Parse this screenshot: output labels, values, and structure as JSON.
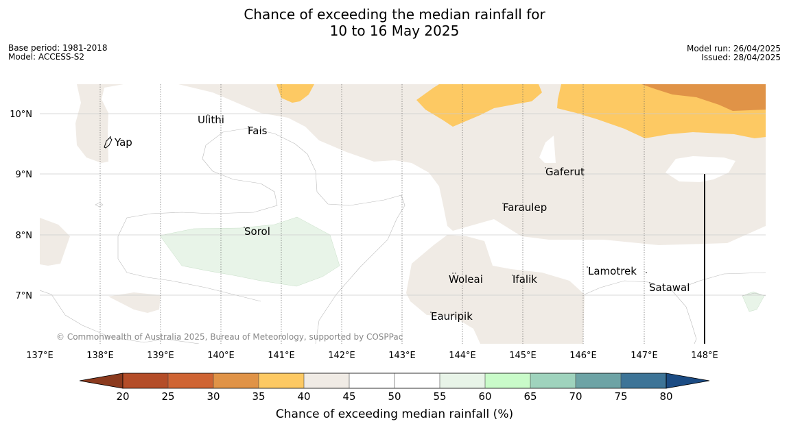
{
  "title": {
    "line1": "Chance of exceeding the median rainfall for",
    "line2": "10 to 16 May 2025"
  },
  "meta_left": {
    "base_period": "Base period: 1981-2018",
    "model": "Model: ACCESS-S2"
  },
  "meta_right": {
    "model_run": "Model run: 26/04/2025",
    "issued": "Issued: 28/04/2025"
  },
  "copyright": "© Commonwealth of Australia 2025, Bureau of Meteorology, supported by COSPPac",
  "map": {
    "lon_ticks": [
      "137°E",
      "138°E",
      "139°E",
      "140°E",
      "141°E",
      "142°E",
      "143°E",
      "144°E",
      "145°E",
      "146°E",
      "147°E",
      "148°E"
    ],
    "lat_ticks": [
      "10°N",
      "9°N",
      "8°N",
      "7°N"
    ],
    "places": [
      {
        "name": "Yap"
      },
      {
        "name": "Ulithi"
      },
      {
        "name": "Fais"
      },
      {
        "name": "Gaferut"
      },
      {
        "name": "Faraulep"
      },
      {
        "name": "Sorol"
      },
      {
        "name": "Lamotrek"
      },
      {
        "name": "Woleai"
      },
      {
        "name": "Ifalik"
      },
      {
        "name": "Satawal"
      },
      {
        "name": "Eauripik"
      }
    ]
  },
  "colorbar": {
    "label": "Chance of exceeding median rainfall (%)",
    "ticks": [
      "20",
      "25",
      "30",
      "35",
      "40",
      "45",
      "50",
      "55",
      "60",
      "65",
      "70",
      "75",
      "80"
    ],
    "colors": {
      "below_20": "#8b3a1e",
      "20_25": "#b44d28",
      "25_30": "#cf6433",
      "30_35": "#e09347",
      "35_40": "#fdc963",
      "40_45": "#f0ebe5",
      "45_50": "#ffffff",
      "50_55": "#ffffff",
      "55_60": "#e8f4e8",
      "60_65": "#c9fbc9",
      "65_70": "#9fd3bd",
      "70_75": "#6da3a5",
      "75_80": "#3d7497",
      "above_80": "#1b4b83"
    }
  }
}
